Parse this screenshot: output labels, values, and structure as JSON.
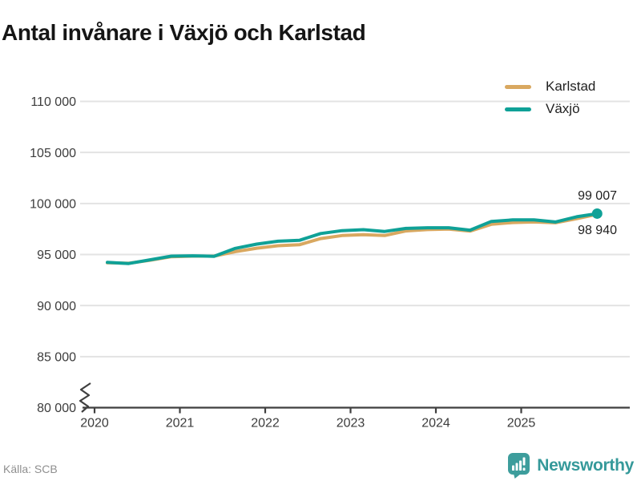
{
  "title": "Antal invånare i Växjö och Karlstad",
  "footer": {
    "source": "Källa: SCB",
    "brand": "Newsworthy"
  },
  "colors": {
    "vaxjo": "#0fa197",
    "karlstad": "#d9a860",
    "grid": "#e3e3e3",
    "axis": "#3f3f3f",
    "tick_label": "#3c3c3c",
    "brand_teal": "#3d9d9c"
  },
  "chart_data": {
    "type": "line",
    "title": "Antal invånare i Växjö och Karlstad",
    "grid": "horizontal",
    "legend_position": "top-right",
    "axis_break": true,
    "xlim": [
      2019.86,
      2026.27
    ],
    "ylim": [
      80000,
      110000
    ],
    "x": [
      2020.15,
      2020.4,
      2020.65,
      2020.9,
      2021.15,
      2021.4,
      2021.65,
      2021.9,
      2022.15,
      2022.4,
      2022.65,
      2022.9,
      2023.15,
      2023.4,
      2023.65,
      2023.9,
      2024.15,
      2024.4,
      2024.65,
      2024.9,
      2025.15,
      2025.4,
      2025.65,
      2025.89
    ],
    "series": [
      {
        "name": "Karlstad",
        "color": "#d9a860",
        "marker_end": false,
        "values": [
          94190,
          94140,
          94430,
          94790,
          94840,
          94840,
          95280,
          95620,
          95860,
          95960,
          96560,
          96860,
          96950,
          96860,
          97310,
          97440,
          97490,
          97290,
          97960,
          98130,
          98190,
          98110,
          98510,
          98940
        ]
      },
      {
        "name": "Växjö",
        "color": "#0fa197",
        "marker_end": true,
        "values": [
          94230,
          94120,
          94480,
          94840,
          94870,
          94830,
          95600,
          96020,
          96300,
          96390,
          97060,
          97340,
          97430,
          97260,
          97560,
          97620,
          97620,
          97390,
          98240,
          98390,
          98400,
          98190,
          98700,
          99007
        ]
      }
    ],
    "y_ticks": [
      {
        "value": 110000,
        "label": "110 000"
      },
      {
        "value": 105000,
        "label": "105 000"
      },
      {
        "value": 100000,
        "label": "100 000"
      },
      {
        "value": 95000,
        "label": "95 000"
      },
      {
        "value": 90000,
        "label": "90 000"
      },
      {
        "value": 85000,
        "label": "85 000"
      },
      {
        "value": 80000,
        "label": "80 000"
      }
    ],
    "x_ticks": [
      {
        "value": 2020,
        "label": "2020"
      },
      {
        "value": 2021,
        "label": "2021"
      },
      {
        "value": 2022,
        "label": "2022"
      },
      {
        "value": 2023,
        "label": "2023"
      },
      {
        "value": 2024,
        "label": "2024"
      },
      {
        "value": 2025,
        "label": "2025"
      }
    ],
    "annotations": [
      {
        "series": "Växjö",
        "text": "99 007",
        "value": 99007
      },
      {
        "series": "Karlstad",
        "text": "98 940",
        "value": 98940
      }
    ]
  }
}
